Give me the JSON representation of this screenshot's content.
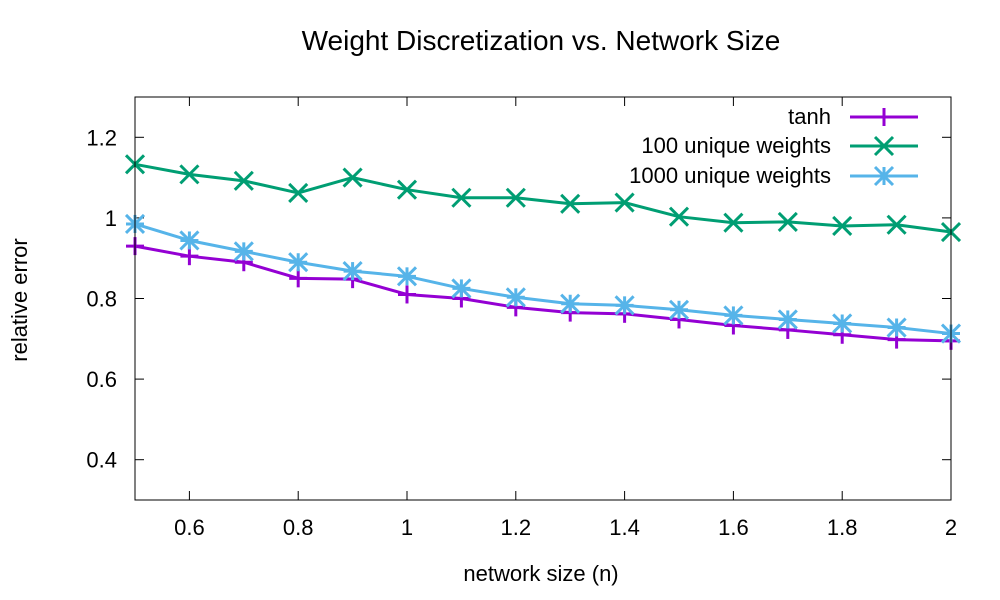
{
  "chart_data": {
    "type": "line",
    "title": "Weight Discretization vs. Network Size",
    "xlabel": "network size (n)",
    "ylabel": "relative error",
    "xlim": [
      0.5,
      2.0
    ],
    "ylim": [
      0.3,
      1.3
    ],
    "x_ticks": [
      0.6,
      0.8,
      1.0,
      1.2,
      1.4,
      1.6,
      1.8,
      2.0
    ],
    "x_tick_labels": [
      "0.6",
      "0.8",
      "1",
      "1.2",
      "1.4",
      "1.6",
      "1.8",
      "2"
    ],
    "y_ticks": [
      0.4,
      0.6,
      0.8,
      1.0,
      1.2
    ],
    "y_tick_labels": [
      "0.4",
      "0.6",
      "0.8",
      "1",
      "1.2"
    ],
    "grid": false,
    "legend_position": "top-right",
    "x": [
      0.5,
      0.6,
      0.7,
      0.8,
      0.9,
      1.0,
      1.1,
      1.2,
      1.3,
      1.4,
      1.5,
      1.6,
      1.7,
      1.8,
      1.9,
      2.0
    ],
    "series": [
      {
        "name": "tanh",
        "color": "#9400d3",
        "marker": "plus",
        "values": [
          0.93,
          0.905,
          0.89,
          0.85,
          0.848,
          0.81,
          0.8,
          0.778,
          0.765,
          0.762,
          0.748,
          0.733,
          0.722,
          0.71,
          0.698,
          0.695
        ]
      },
      {
        "name": "100 unique weights",
        "color": "#009e73",
        "marker": "cross",
        "values": [
          1.133,
          1.108,
          1.092,
          1.062,
          1.1,
          1.07,
          1.05,
          1.05,
          1.035,
          1.038,
          1.003,
          0.988,
          0.99,
          0.98,
          0.983,
          0.965
        ]
      },
      {
        "name": "1000 unique weights",
        "color": "#56b4e9",
        "marker": "star",
        "values": [
          0.985,
          0.944,
          0.917,
          0.89,
          0.868,
          0.855,
          0.825,
          0.803,
          0.787,
          0.783,
          0.772,
          0.758,
          0.748,
          0.738,
          0.728,
          0.713
        ]
      }
    ]
  }
}
